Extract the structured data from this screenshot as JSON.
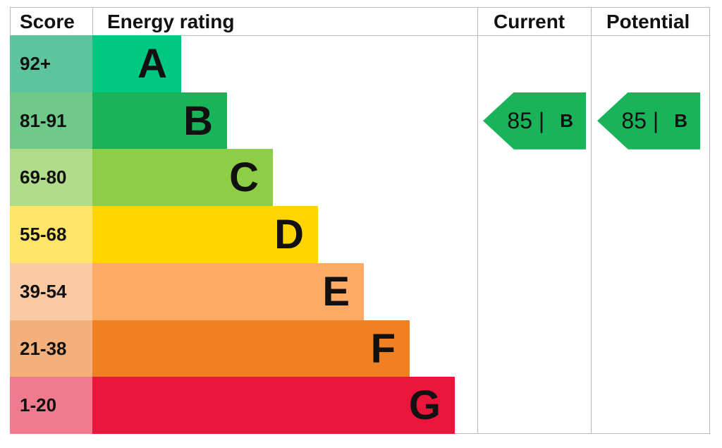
{
  "chart_data": {
    "type": "table",
    "headers": {
      "score": "Score",
      "rating": "Energy rating",
      "current": "Current",
      "potential": "Potential"
    },
    "bands": [
      {
        "letter": "A",
        "range": "92+",
        "color": "#00c781",
        "light": "#5ec49d"
      },
      {
        "letter": "B",
        "range": "81-91",
        "color": "#19b459",
        "light": "#6fc98a"
      },
      {
        "letter": "C",
        "range": "69-80",
        "color": "#8dce46",
        "light": "#b1dd8a"
      },
      {
        "letter": "D",
        "range": "55-68",
        "color": "#ffd500",
        "light": "#ffe46a"
      },
      {
        "letter": "E",
        "range": "39-54",
        "color": "#fcaa65",
        "light": "#fbc9a2"
      },
      {
        "letter": "F",
        "range": "21-38",
        "color": "#ef8023",
        "light": "#f4b07a"
      },
      {
        "letter": "G",
        "range": "1-20",
        "color": "#e9153b",
        "light": "#f07a8e"
      }
    ],
    "current": {
      "score": "85",
      "separator": "|",
      "letter": "B",
      "color": "#19b459"
    },
    "potential": {
      "score": "85",
      "separator": "|",
      "letter": "B",
      "color": "#19b459"
    }
  }
}
